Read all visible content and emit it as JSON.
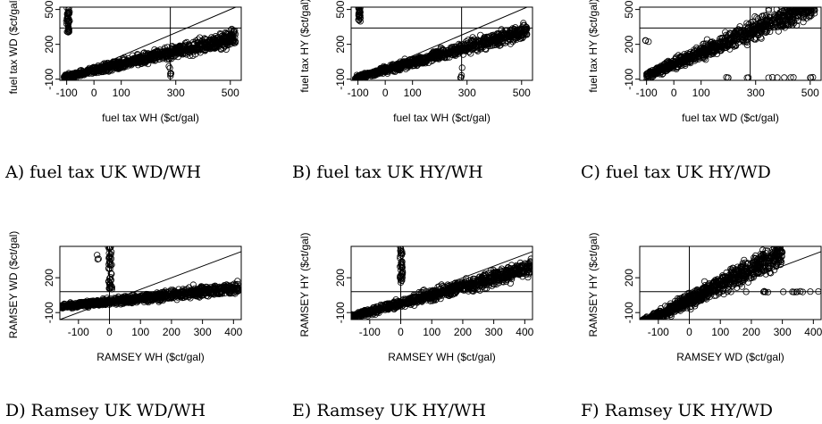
{
  "chart_data": [
    {
      "type": "scatter",
      "caption": "A) fuel tax UK WD/WH",
      "xlabel": "fuel tax WH ($ct/gal)",
      "ylabel": "fuel tax WD ($ct/gal)",
      "xlim": [
        -125,
        540
      ],
      "ylim": [
        -110,
        520
      ],
      "xticks": [
        -100,
        0,
        100,
        300,
        500
      ],
      "yticks": [
        -100,
        200,
        500
      ],
      "diagonal": true,
      "vline": 280,
      "hline": 340,
      "clusters": [
        {
          "kind": "band",
          "x": [
            -110,
            520
          ],
          "slope": 0.55,
          "intercept": -25,
          "spread": 70,
          "n": 950
        },
        {
          "kind": "column",
          "x": -95,
          "y": [
            300,
            520
          ],
          "n": 40
        },
        {
          "kind": "column",
          "x": 280,
          "y": [
            -90,
            60
          ],
          "n": 6
        }
      ]
    },
    {
      "type": "scatter",
      "caption": "B) fuel tax UK HY/WH",
      "xlabel": "fuel tax WH ($ct/gal)",
      "ylabel": "fuel tax HY ($ct/gal)",
      "xlim": [
        -125,
        540
      ],
      "ylim": [
        -110,
        520
      ],
      "xticks": [
        -100,
        0,
        100,
        300,
        500
      ],
      "yticks": [
        -100,
        200,
        500
      ],
      "diagonal": true,
      "vline": 280,
      "hline": 340,
      "clusters": [
        {
          "kind": "band",
          "x": [
            -110,
            520
          ],
          "slope": 0.65,
          "intercept": -20,
          "spread": 65,
          "n": 950
        },
        {
          "kind": "column",
          "x": -95,
          "y": [
            380,
            520
          ],
          "n": 30
        },
        {
          "kind": "column",
          "x": 280,
          "y": [
            -90,
            30
          ],
          "n": 4
        }
      ]
    },
    {
      "type": "scatter",
      "caption": "C) fuel tax UK HY/WD",
      "xlabel": "fuel tax WD ($ct/gal)",
      "ylabel": "fuel tax HY ($ct/gal)",
      "xlim": [
        -125,
        540
      ],
      "ylim": [
        -110,
        520
      ],
      "xticks": [
        -100,
        0,
        100,
        300,
        500
      ],
      "yticks": [
        -100,
        200,
        500
      ],
      "diagonal": true,
      "vline": 280,
      "hline": 340,
      "clusters": [
        {
          "kind": "band",
          "x": [
            -100,
            520
          ],
          "slope": 1.0,
          "intercept": 30,
          "spread": 110,
          "n": 950
        },
        {
          "kind": "row",
          "y": -85,
          "x": [
            180,
            520
          ],
          "n": 14
        },
        {
          "kind": "column",
          "x": -100,
          "y": [
            200,
            270
          ],
          "n": 3
        }
      ]
    },
    {
      "type": "scatter",
      "caption": "D) Ramsey UK WD/WH",
      "xlabel": "RAMSEY WH ($ct/gal)",
      "ylabel": "RAMSEY WD ($ct/gal)",
      "xlim": [
        -160,
        425
      ],
      "ylim": [
        -160,
        470
      ],
      "xticks": [
        -100,
        0,
        100,
        200,
        300,
        400
      ],
      "yticks": [
        -100,
        200
      ],
      "diagonal": true,
      "vline": 0,
      "hline": 80,
      "clusters": [
        {
          "kind": "band",
          "x": [
            -160,
            420
          ],
          "slope": 0.28,
          "intercept": -5,
          "spread": 55,
          "n": 950
        },
        {
          "kind": "column",
          "x": 2,
          "y": [
            100,
            470
          ],
          "n": 45
        },
        {
          "kind": "column",
          "x": -40,
          "y": [
            350,
            400
          ],
          "n": 3
        }
      ]
    },
    {
      "type": "scatter",
      "caption": "E) Ramsey UK HY/WH",
      "xlabel": "RAMSEY WH ($ct/gal)",
      "ylabel": "RAMSEY HY ($ct/gal)",
      "xlim": [
        -160,
        425
      ],
      "ylim": [
        -160,
        470
      ],
      "xticks": [
        -100,
        0,
        100,
        200,
        300,
        400
      ],
      "yticks": [
        -100,
        200
      ],
      "diagonal": true,
      "vline": 0,
      "hline": 80,
      "clusters": [
        {
          "kind": "band",
          "x": [
            -160,
            420
          ],
          "slope": 0.72,
          "intercept": -20,
          "spread": 75,
          "n": 950
        },
        {
          "kind": "column",
          "x": 2,
          "y": [
            150,
            470
          ],
          "n": 40
        }
      ]
    },
    {
      "type": "scatter",
      "caption": "F) Ramsey UK HY/WD",
      "xlabel": "RAMSEY WD ($ct/gal)",
      "ylabel": "RAMSEY HY ($ct/gal)",
      "xlim": [
        -160,
        425
      ],
      "ylim": [
        -160,
        470
      ],
      "xticks": [
        -100,
        0,
        100,
        200,
        300,
        400
      ],
      "yticks": [
        -100,
        200
      ],
      "diagonal": true,
      "vline": 0,
      "hline": 80,
      "clusters": [
        {
          "kind": "band",
          "x": [
            -160,
            300
          ],
          "slope": 1.35,
          "intercept": 10,
          "spread": 110,
          "n": 950
        },
        {
          "kind": "row",
          "y": 80,
          "x": [
            120,
            420
          ],
          "n": 16
        }
      ]
    }
  ]
}
